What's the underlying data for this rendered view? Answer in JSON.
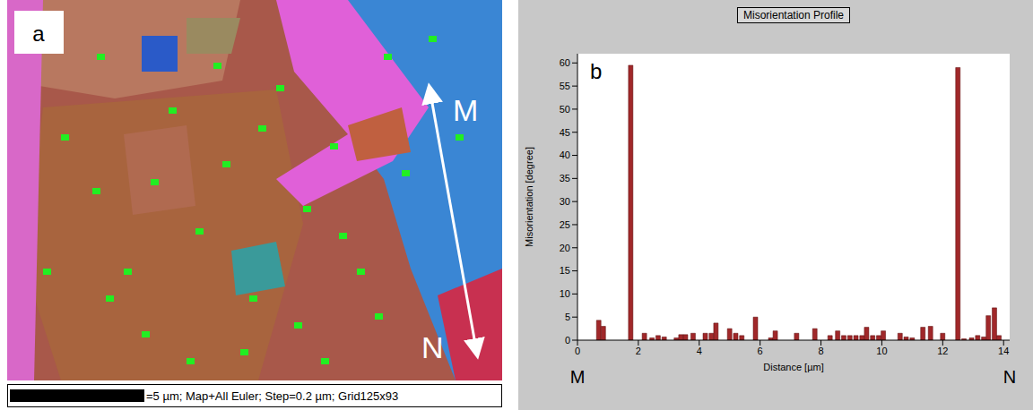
{
  "image_panel": {
    "label": "a",
    "start_label": "M",
    "end_label": "N",
    "caption": "=5 µm; Map+All Euler; Step=0.2 µm; Grid125x93"
  },
  "chart_data": {
    "type": "bar",
    "panel_label": "b",
    "title": "Misorientation Profile",
    "x_label": "Distance [µm]",
    "y_label": "Misorientation [degree]",
    "start_label": "M",
    "end_label": "N",
    "x": [
      0.7,
      0.85,
      1.75,
      2.2,
      2.45,
      2.65,
      2.85,
      3.25,
      3.4,
      3.55,
      3.8,
      4.2,
      4.4,
      4.55,
      5.0,
      5.2,
      5.4,
      5.85,
      6.35,
      6.5,
      7.2,
      7.8,
      8.3,
      8.55,
      8.75,
      8.95,
      9.15,
      9.35,
      9.5,
      9.7,
      9.9,
      10.05,
      10.6,
      10.8,
      11.0,
      11.35,
      11.6,
      12.0,
      12.5,
      12.7,
      12.95,
      13.15,
      13.35,
      13.5,
      13.7,
      13.85
    ],
    "values": [
      4.3,
      3,
      59.5,
      1.5,
      0.5,
      1,
      0.7,
      0.5,
      1.2,
      1.2,
      1.5,
      1.5,
      1.5,
      3.7,
      2.5,
      1.5,
      1,
      5,
      0.5,
      2,
      1.5,
      2.5,
      1,
      2,
      1,
      1,
      1,
      1,
      2.8,
      1,
      1,
      2,
      1.5,
      0.7,
      0.5,
      2.8,
      3,
      1.5,
      59,
      0.3,
      0.5,
      1,
      0.7,
      5.3,
      7,
      1
    ],
    "color": "#a0282a",
    "xlim": [
      0,
      14.2
    ],
    "xticks": [
      0,
      2,
      4,
      6,
      8,
      10,
      12,
      14
    ],
    "ylim": [
      0,
      62
    ],
    "yticks": [
      0,
      5,
      10,
      15,
      20,
      25,
      30,
      35,
      40,
      45,
      50,
      55,
      60
    ],
    "grid": false
  }
}
